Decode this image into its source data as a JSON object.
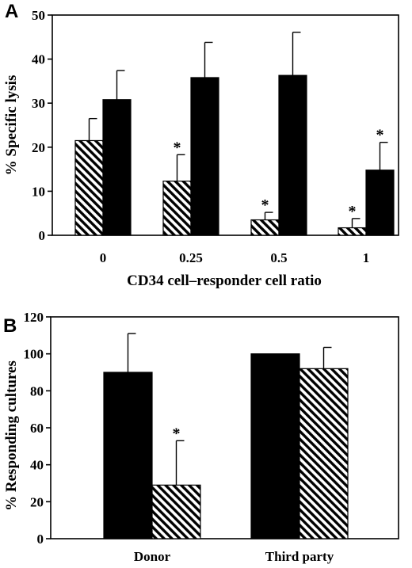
{
  "chart_data": [
    {
      "type": "bar",
      "panel_label": "A",
      "categories": [
        "0",
        "0.25",
        "0.5",
        "1"
      ],
      "xlabel": "CD34 cell–responder cell ratio",
      "ylabel": "% Specific lysis",
      "ylim": [
        0,
        50
      ],
      "yticks": [
        "0",
        "10",
        "20",
        "30",
        "40",
        "50"
      ],
      "series": [
        {
          "fill": "hatched",
          "values": [
            21.5,
            12.3,
            3.5,
            1.7
          ],
          "error": [
            5,
            6,
            1.7,
            2.1
          ],
          "significant": [
            "",
            "*",
            "*",
            "*"
          ]
        },
        {
          "fill": "solid",
          "values": [
            30.8,
            35.8,
            36.3,
            14.8
          ],
          "error": [
            6.6,
            8,
            9.8,
            6.3
          ],
          "significant": [
            "",
            "",
            "",
            "*"
          ]
        }
      ],
      "grid": false,
      "frame": "box"
    },
    {
      "type": "bar",
      "panel_label": "B",
      "categories": [
        "Donor",
        "Third party"
      ],
      "xlabel": "",
      "ylabel": "% Responding cultures",
      "ylim": [
        0,
        120
      ],
      "yticks": [
        "0",
        "20",
        "40",
        "60",
        "80",
        "100",
        "120"
      ],
      "series": [
        {
          "fill": "solid",
          "values": [
            90,
            100
          ],
          "error": [
            21,
            0
          ],
          "significant": [
            "",
            ""
          ]
        },
        {
          "fill": "hatched",
          "values": [
            29,
            92
          ],
          "error": [
            24,
            11.5
          ],
          "significant": [
            "*",
            ""
          ]
        }
      ],
      "grid": false,
      "frame": "box"
    }
  ]
}
